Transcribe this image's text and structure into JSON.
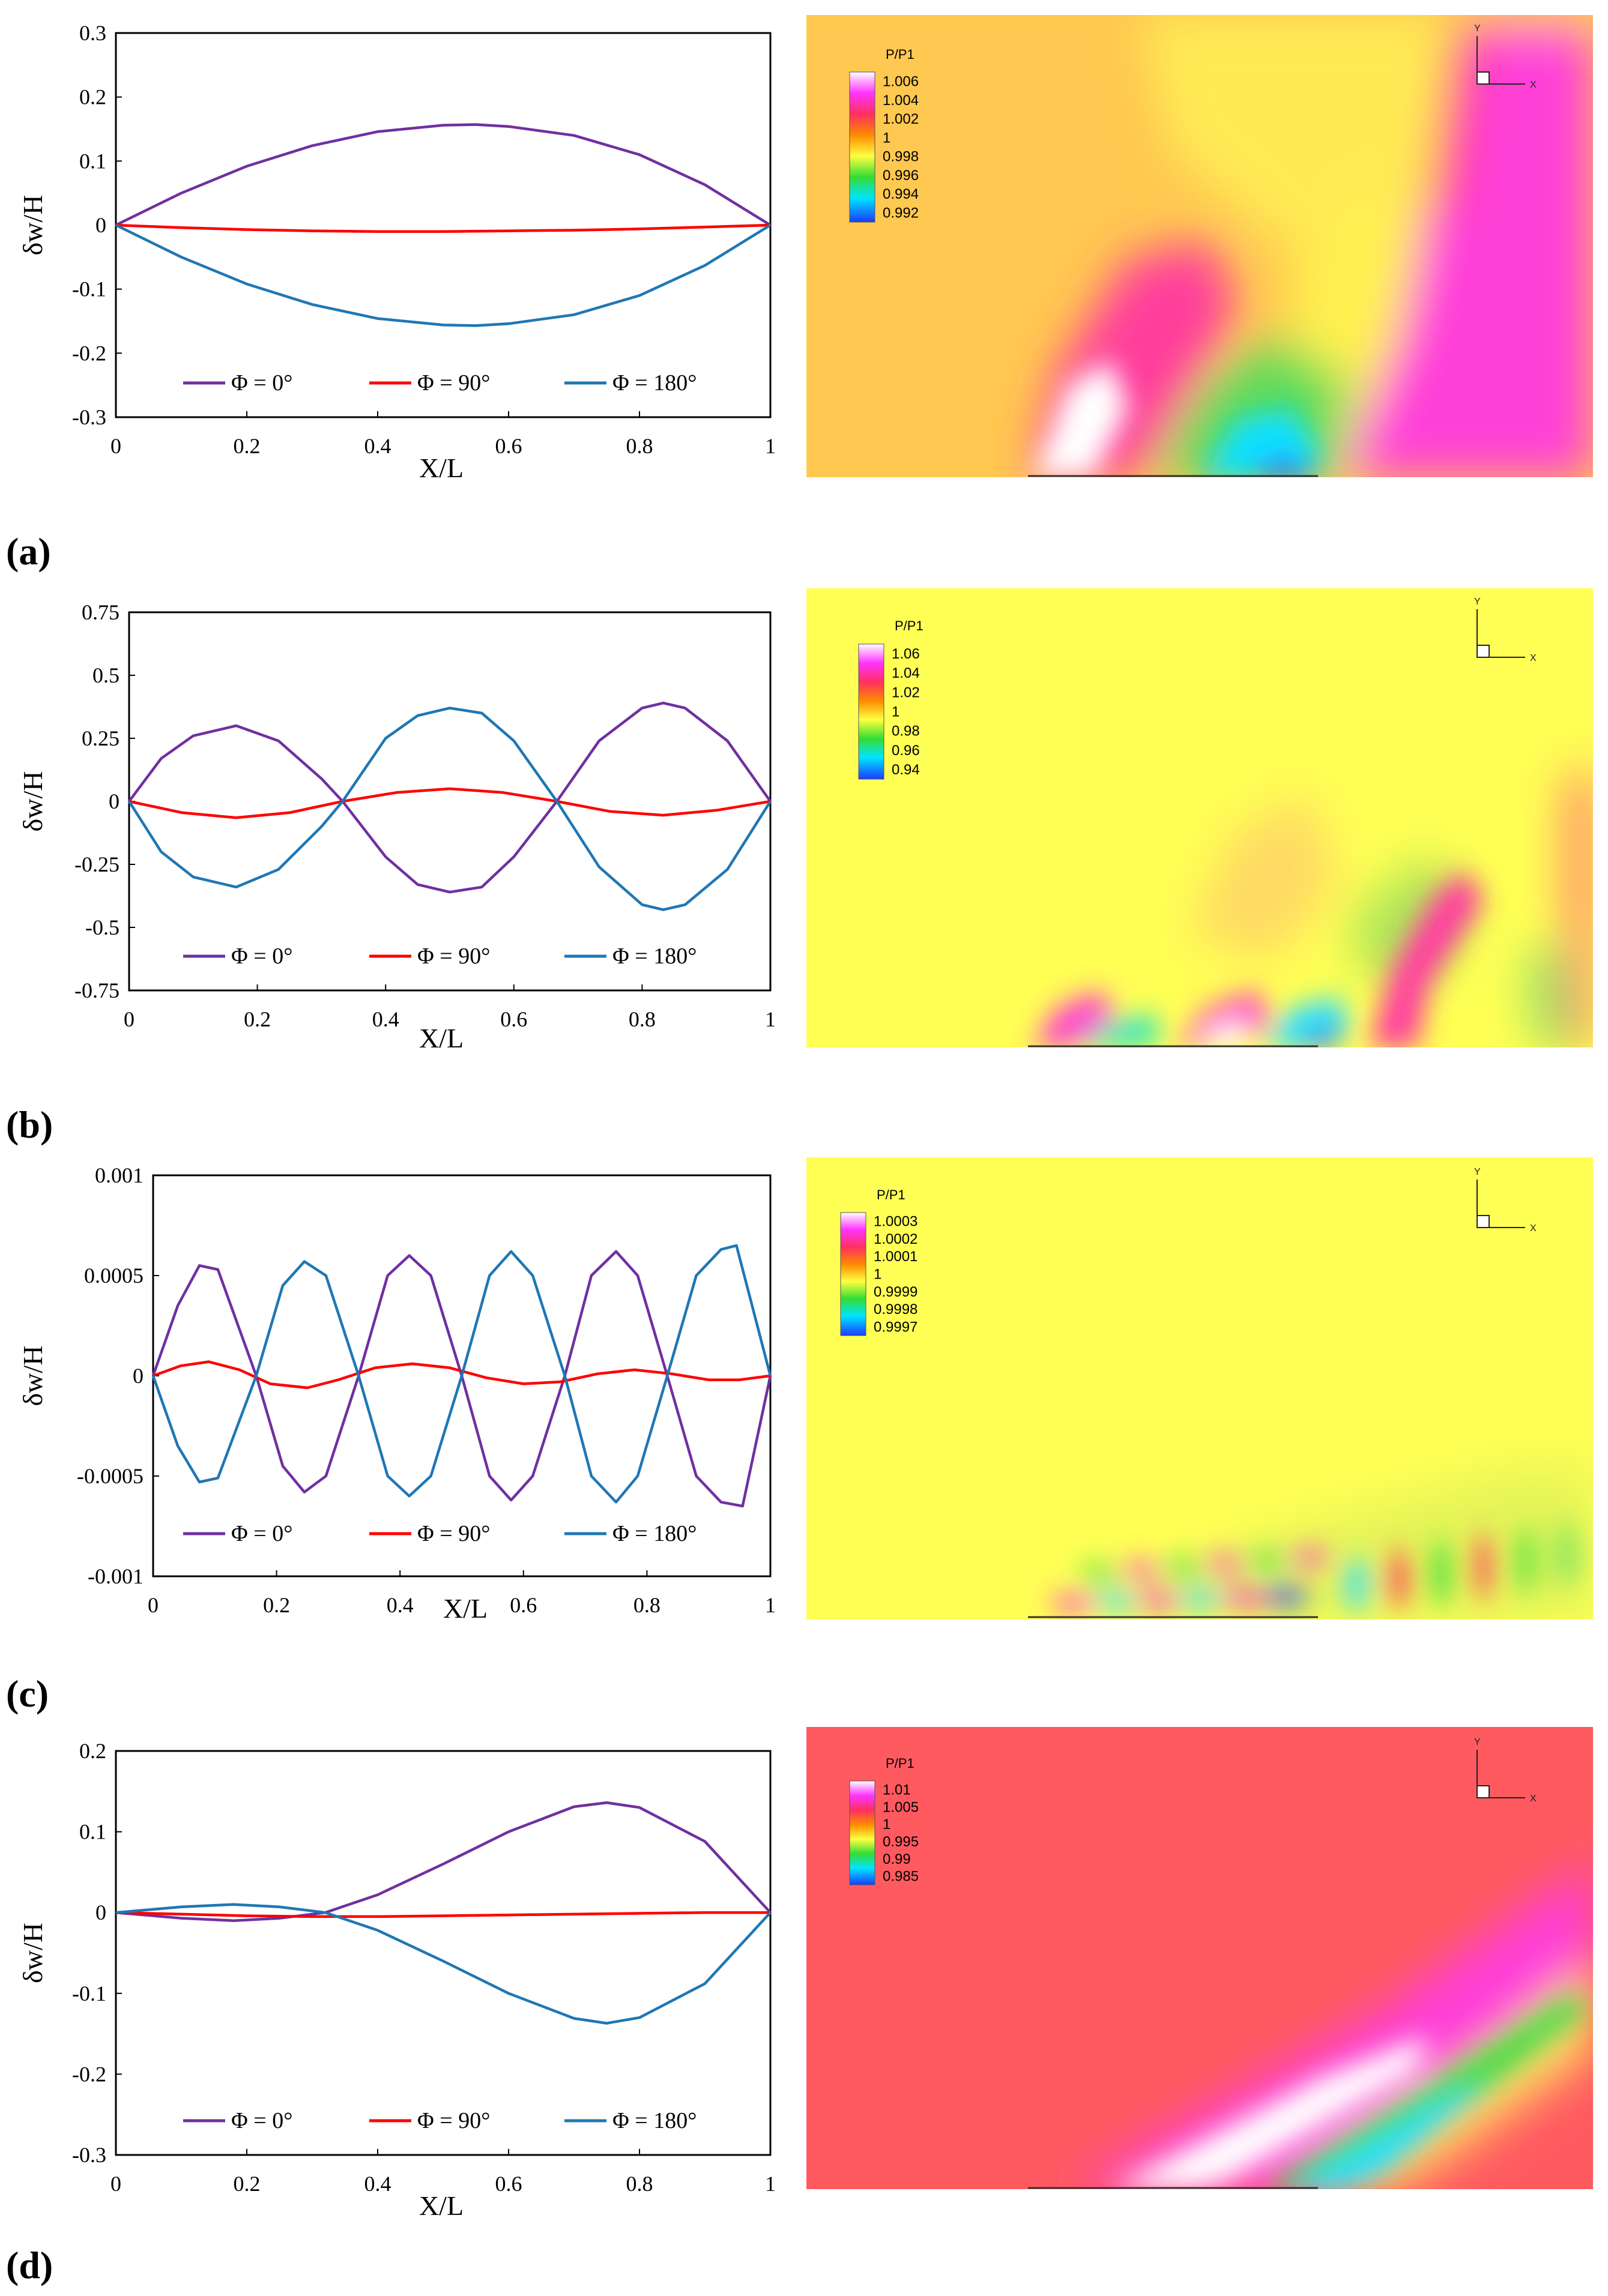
{
  "panel_labels": [
    "(a)",
    "(b)",
    "(c)",
    "(d)"
  ],
  "colors": {
    "phi0": "#7030A0",
    "phi90": "#FF0000",
    "phi180": "#1F77B4"
  },
  "chart_data": [
    {
      "type": "line",
      "panel": "a",
      "xlabel": "X/L",
      "ylabel": "δw/H",
      "xlim": [
        0,
        1
      ],
      "ylim": [
        -0.3,
        0.3
      ],
      "xticks": [
        0,
        0.2,
        0.4,
        0.6,
        0.8,
        1
      ],
      "xtick_labels": [
        "0",
        "0.2",
        "0.4",
        "0.6",
        "0.8",
        "1"
      ],
      "yticks": [
        0.3,
        0.2,
        0.1,
        0,
        -0.1,
        -0.2,
        -0.3
      ],
      "ytick_labels": [
        "0.3",
        "0.2",
        "0.1",
        "0",
        "-0.1",
        "-0.2",
        "-0.3"
      ],
      "series": [
        {
          "name": "Φ = 0°",
          "color": "#7030A0",
          "x": [
            0,
            0.1,
            0.2,
            0.3,
            0.4,
            0.5,
            0.55,
            0.6,
            0.7,
            0.8,
            0.9,
            1
          ],
          "y": [
            0,
            0.05,
            0.092,
            0.124,
            0.146,
            0.156,
            0.157,
            0.154,
            0.14,
            0.11,
            0.063,
            0
          ]
        },
        {
          "name": "Φ = 90°",
          "color": "#FF0000",
          "x": [
            0,
            0.1,
            0.2,
            0.3,
            0.4,
            0.5,
            0.6,
            0.7,
            0.8,
            0.9,
            1
          ],
          "y": [
            0,
            -0.004,
            -0.007,
            -0.009,
            -0.01,
            -0.01,
            -0.009,
            -0.008,
            -0.006,
            -0.003,
            0
          ]
        },
        {
          "name": "Φ = 180°",
          "color": "#1F77B4",
          "x": [
            0,
            0.1,
            0.2,
            0.3,
            0.4,
            0.5,
            0.55,
            0.6,
            0.7,
            0.8,
            0.9,
            1
          ],
          "y": [
            0,
            -0.05,
            -0.092,
            -0.124,
            -0.146,
            -0.156,
            -0.157,
            -0.154,
            -0.14,
            -0.11,
            -0.063,
            0
          ]
        }
      ],
      "contour": {
        "title": "P/P1",
        "levels": [
          "1.006",
          "1.004",
          "1.002",
          "1",
          "0.998",
          "0.996",
          "0.994",
          "0.992"
        ],
        "axis_x": "X",
        "axis_y": "Y"
      }
    },
    {
      "type": "line",
      "panel": "b",
      "xlabel": "X/L",
      "ylabel": "δw/H",
      "xlim": [
        0,
        1
      ],
      "ylim": [
        -0.75,
        0.75
      ],
      "xticks": [
        0,
        0.2,
        0.4,
        0.6,
        0.8,
        1
      ],
      "xtick_labels": [
        "0",
        "0.2",
        "0.4",
        "0.6",
        "0.8",
        "1"
      ],
      "yticks": [
        0.75,
        0.5,
        0.25,
        0,
        -0.25,
        -0.5,
        -0.75
      ],
      "ytick_labels": [
        "0.75",
        "0.5",
        "0.25",
        "0",
        "-0.25",
        "-0.5",
        "-0.75"
      ],
      "series": [
        {
          "name": "Φ = 0°",
          "color": "#7030A0",
          "x": [
            0,
            0.05,
            0.1,
            0.167,
            0.233,
            0.3,
            0.333,
            0.4,
            0.45,
            0.5,
            0.55,
            0.6,
            0.667,
            0.733,
            0.8,
            0.833,
            0.867,
            0.933,
            1
          ],
          "y": [
            0,
            0.17,
            0.26,
            0.3,
            0.24,
            0.09,
            0,
            -0.22,
            -0.33,
            -0.36,
            -0.34,
            -0.22,
            0,
            0.24,
            0.37,
            0.39,
            0.37,
            0.24,
            0
          ]
        },
        {
          "name": "Φ = 90°",
          "color": "#FF0000",
          "x": [
            0,
            0.083,
            0.167,
            0.25,
            0.333,
            0.417,
            0.5,
            0.583,
            0.667,
            0.75,
            0.833,
            0.917,
            1
          ],
          "y": [
            0,
            -0.045,
            -0.065,
            -0.045,
            0,
            0.035,
            0.05,
            0.035,
            0,
            -0.04,
            -0.055,
            -0.035,
            0
          ]
        },
        {
          "name": "Φ = 180°",
          "color": "#1F77B4",
          "x": [
            0,
            0.05,
            0.1,
            0.167,
            0.233,
            0.3,
            0.333,
            0.4,
            0.45,
            0.5,
            0.55,
            0.6,
            0.667,
            0.733,
            0.8,
            0.833,
            0.867,
            0.933,
            1
          ],
          "y": [
            0,
            -0.2,
            -0.3,
            -0.34,
            -0.27,
            -0.1,
            0,
            0.25,
            0.34,
            0.37,
            0.35,
            0.24,
            0,
            -0.26,
            -0.41,
            -0.43,
            -0.41,
            -0.27,
            0
          ]
        }
      ],
      "contour": {
        "title": "P/P1",
        "levels": [
          "1.06",
          "1.04",
          "1.02",
          "1",
          "0.98",
          "0.96",
          "0.94"
        ],
        "axis_x": "X",
        "axis_y": "Y"
      }
    },
    {
      "type": "line",
      "panel": "c",
      "xlabel": "X/L",
      "ylabel": "δw/H",
      "xlim": [
        0,
        1
      ],
      "ylim": [
        -0.001,
        0.001
      ],
      "xticks": [
        0,
        0.2,
        0.4,
        0.6,
        0.8,
        1
      ],
      "xtick_labels": [
        "0",
        "0.2",
        "0.4",
        "0.6",
        "0.8",
        "1"
      ],
      "yticks": [
        0.001,
        0.0005,
        0,
        -0.0005,
        -0.001
      ],
      "ytick_labels": [
        "0.001",
        "0.0005",
        "0",
        "-0.0005",
        "-0.001"
      ],
      "series": [
        {
          "name": "Φ = 0°",
          "color": "#7030A0",
          "x": [
            0,
            0.04,
            0.075,
            0.105,
            0.167,
            0.21,
            0.245,
            0.28,
            0.333,
            0.38,
            0.415,
            0.45,
            0.5,
            0.545,
            0.58,
            0.615,
            0.667,
            0.71,
            0.75,
            0.785,
            0.833,
            0.88,
            0.92,
            0.955,
            1
          ],
          "y": [
            0,
            0.00035,
            0.00055,
            0.00053,
            0,
            -0.00045,
            -0.00058,
            -0.0005,
            0,
            0.0005,
            0.0006,
            0.0005,
            0,
            -0.0005,
            -0.00062,
            -0.0005,
            0,
            0.0005,
            0.00062,
            0.0005,
            0,
            -0.0005,
            -0.00063,
            -0.00065,
            0
          ]
        },
        {
          "name": "Φ = 90°",
          "color": "#FF0000",
          "x": [
            0,
            0.045,
            0.09,
            0.14,
            0.19,
            0.25,
            0.3,
            0.36,
            0.42,
            0.48,
            0.54,
            0.6,
            0.66,
            0.72,
            0.78,
            0.84,
            0.9,
            0.95,
            1
          ],
          "y": [
            0,
            5e-05,
            7e-05,
            3e-05,
            -4e-05,
            -6e-05,
            -2e-05,
            4e-05,
            6e-05,
            4e-05,
            -1e-05,
            -4e-05,
            -3e-05,
            1e-05,
            3e-05,
            1e-05,
            -2e-05,
            -2e-05,
            0
          ]
        },
        {
          "name": "Φ = 180°",
          "color": "#1F77B4",
          "x": [
            0,
            0.04,
            0.075,
            0.105,
            0.167,
            0.21,
            0.245,
            0.28,
            0.333,
            0.38,
            0.415,
            0.45,
            0.5,
            0.545,
            0.58,
            0.615,
            0.667,
            0.71,
            0.75,
            0.785,
            0.833,
            0.88,
            0.92,
            0.945,
            1
          ],
          "y": [
            0,
            -0.00035,
            -0.00053,
            -0.00051,
            0,
            0.00045,
            0.00057,
            0.0005,
            0,
            -0.0005,
            -0.0006,
            -0.0005,
            0,
            0.0005,
            0.00062,
            0.0005,
            0,
            -0.0005,
            -0.00063,
            -0.0005,
            0,
            0.0005,
            0.00063,
            0.00065,
            0
          ]
        }
      ],
      "contour": {
        "title": "P/P1",
        "levels": [
          "1.0003",
          "1.0002",
          "1.0001",
          "1",
          "0.9999",
          "0.9998",
          "0.9997"
        ],
        "axis_x": "X",
        "axis_y": "Y"
      }
    },
    {
      "type": "line",
      "panel": "d",
      "xlabel": "X/L",
      "ylabel": "δw/H",
      "xlim": [
        0,
        1
      ],
      "ylim": [
        -0.3,
        0.2
      ],
      "xticks": [
        0,
        0.2,
        0.4,
        0.6,
        0.8,
        1
      ],
      "xtick_labels": [
        "0",
        "0.2",
        "0.4",
        "0.6",
        "0.8",
        "1"
      ],
      "yticks": [
        0.2,
        0.1,
        0,
        -0.1,
        -0.2,
        -0.3
      ],
      "ytick_labels": [
        "0.2",
        "0.1",
        "0",
        "-0.1",
        "-0.2",
        "-0.3"
      ],
      "series": [
        {
          "name": "Φ = 0°",
          "color": "#7030A0",
          "x": [
            0,
            0.1,
            0.18,
            0.25,
            0.32,
            0.4,
            0.5,
            0.6,
            0.7,
            0.75,
            0.8,
            0.9,
            1
          ],
          "y": [
            0,
            -0.007,
            -0.01,
            -0.007,
            0,
            0.022,
            0.06,
            0.1,
            0.131,
            0.136,
            0.13,
            0.088,
            0
          ]
        },
        {
          "name": "Φ = 90°",
          "color": "#FF0000",
          "x": [
            0,
            0.1,
            0.2,
            0.3,
            0.4,
            0.5,
            0.6,
            0.7,
            0.8,
            0.9,
            1
          ],
          "y": [
            0,
            -0.002,
            -0.004,
            -0.005,
            -0.005,
            -0.004,
            -0.003,
            -0.002,
            -0.001,
            0,
            0
          ]
        },
        {
          "name": "Φ = 180°",
          "color": "#1F77B4",
          "x": [
            0,
            0.1,
            0.18,
            0.25,
            0.32,
            0.4,
            0.5,
            0.6,
            0.7,
            0.75,
            0.8,
            0.9,
            1
          ],
          "y": [
            0,
            0.007,
            0.01,
            0.007,
            0,
            -0.022,
            -0.06,
            -0.1,
            -0.131,
            -0.137,
            -0.13,
            -0.088,
            0
          ]
        }
      ],
      "contour": {
        "title": "P/P1",
        "levels": [
          "1.01",
          "1.005",
          "1",
          "0.995",
          "0.99",
          "0.985"
        ],
        "axis_x": "X",
        "axis_y": "Y"
      }
    }
  ]
}
